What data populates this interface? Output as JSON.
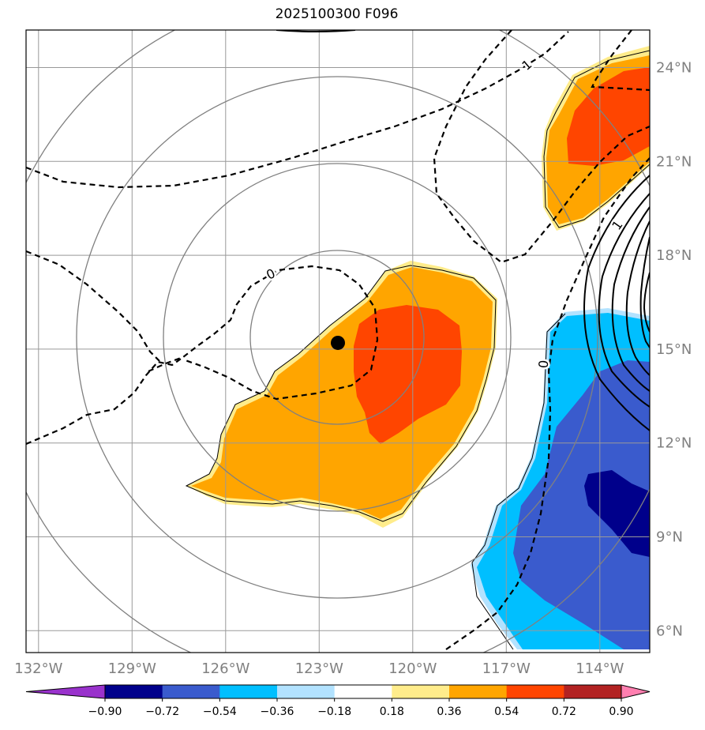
{
  "chart_data": {
    "type": "heatmap",
    "title": "2025100300 F096",
    "x_ticks": [
      "132°W",
      "129°W",
      "126°W",
      "123°W",
      "120°W",
      "117°W",
      "114°W"
    ],
    "y_ticks": [
      "24°N",
      "21°N",
      "18°N",
      "15°N",
      "12°N",
      "9°N",
      "6°N"
    ],
    "x_tick_values": [
      -132,
      -129,
      -126,
      -123,
      -120,
      -117,
      -114
    ],
    "y_tick_values": [
      24,
      21,
      18,
      15,
      12,
      9,
      6
    ],
    "xlim": [
      -132.4,
      -112.4
    ],
    "ylim": [
      5.3,
      25.2
    ],
    "grid": true,
    "colorbar": {
      "orientation": "horizontal",
      "extend": "both",
      "bounds": [
        -0.9,
        -0.72,
        -0.54,
        -0.36,
        -0.18,
        0.18,
        0.36,
        0.54,
        0.72,
        0.9
      ],
      "tick_labels": [
        "−0.90",
        "−0.72",
        "−0.54",
        "−0.36",
        "−0.18",
        "0.18",
        "0.36",
        "0.54",
        "0.72",
        "0.90"
      ],
      "colors": [
        "#9932cc",
        "#00008b",
        "#3a5bcd",
        "#00bfff",
        "#b2e2ff",
        "#ffffff",
        "#ffec8b",
        "#ffa500",
        "#ff4500",
        "#b22222",
        "#ff7fb0"
      ]
    },
    "storm_center": {
      "lon": -122.4,
      "lat": 15.2
    },
    "range_rings_deg": [
      2.8,
      5.5,
      8.3,
      11.1
    ],
    "contour_labels": [
      "0",
      "0",
      "1",
      "1"
    ]
  }
}
